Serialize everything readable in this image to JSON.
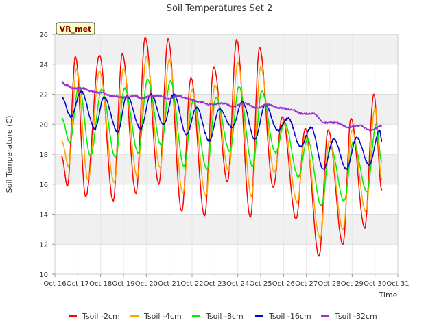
{
  "chart_data": {
    "type": "line",
    "title": "Soil Temperatures Set 2",
    "xlabel": "Time",
    "ylabel": "Soil Temperature (C)",
    "site_label": "VR_met",
    "xlim": [
      16,
      31
    ],
    "ylim": [
      10,
      26
    ],
    "x_ticks": [
      {
        "value": 16,
        "label": "Oct 16"
      },
      {
        "value": 17,
        "label": "Oct 17"
      },
      {
        "value": 18,
        "label": "Oct 18"
      },
      {
        "value": 19,
        "label": "Oct 19"
      },
      {
        "value": 20,
        "label": "Oct 20"
      },
      {
        "value": 21,
        "label": "Oct 21"
      },
      {
        "value": 22,
        "label": "Oct 22"
      },
      {
        "value": 23,
        "label": "Oct 23"
      },
      {
        "value": 24,
        "label": "Oct 24"
      },
      {
        "value": 25,
        "label": "Oct 25"
      },
      {
        "value": 26,
        "label": "Oct 26"
      },
      {
        "value": 27,
        "label": "Oct 27"
      },
      {
        "value": 28,
        "label": "Oct 28"
      },
      {
        "value": 29,
        "label": "Oct 29"
      },
      {
        "value": 30,
        "label": "Oct 30"
      },
      {
        "value": 31,
        "label": "Oct 31"
      }
    ],
    "y_ticks": [
      10,
      12,
      14,
      16,
      18,
      20,
      22,
      24,
      26
    ],
    "grid": true,
    "legend_position": "bottom",
    "series": [
      {
        "name": "Tsoil -2cm",
        "color": "#ff0000",
        "points": [
          [
            16.3,
            17.8
          ],
          [
            16.55,
            15.9
          ],
          [
            16.9,
            24.5
          ],
          [
            17.35,
            15.2
          ],
          [
            17.95,
            24.6
          ],
          [
            18.55,
            14.9
          ],
          [
            18.95,
            24.7
          ],
          [
            19.55,
            15.4
          ],
          [
            19.95,
            25.8
          ],
          [
            20.55,
            16.0
          ],
          [
            20.95,
            25.7
          ],
          [
            21.55,
            14.2
          ],
          [
            21.95,
            23.1
          ],
          [
            22.55,
            13.9
          ],
          [
            22.95,
            23.8
          ],
          [
            23.55,
            16.2
          ],
          [
            23.95,
            25.6
          ],
          [
            24.55,
            13.8
          ],
          [
            24.95,
            25.1
          ],
          [
            25.55,
            15.8
          ],
          [
            25.95,
            20.5
          ],
          [
            26.55,
            13.7
          ],
          [
            26.95,
            19.7
          ],
          [
            27.55,
            11.2
          ],
          [
            27.95,
            19.6
          ],
          [
            28.6,
            12.0
          ],
          [
            28.95,
            20.4
          ],
          [
            29.55,
            13.1
          ],
          [
            29.95,
            22.0
          ],
          [
            30.3,
            15.6
          ]
        ]
      },
      {
        "name": "Tsoil -4cm",
        "color": "#ffa500",
        "points": [
          [
            16.3,
            18.9
          ],
          [
            16.6,
            17.2
          ],
          [
            16.95,
            23.7
          ],
          [
            17.45,
            16.3
          ],
          [
            17.95,
            23.5
          ],
          [
            18.6,
            16.1
          ],
          [
            19.0,
            23.7
          ],
          [
            19.6,
            16.5
          ],
          [
            20.0,
            24.5
          ],
          [
            20.6,
            17.1
          ],
          [
            21.0,
            24.3
          ],
          [
            21.6,
            15.4
          ],
          [
            22.0,
            22.3
          ],
          [
            22.6,
            15.2
          ],
          [
            23.0,
            22.6
          ],
          [
            23.6,
            16.9
          ],
          [
            24.0,
            24.1
          ],
          [
            24.6,
            15.2
          ],
          [
            25.0,
            23.8
          ],
          [
            25.6,
            16.8
          ],
          [
            26.0,
            20.2
          ],
          [
            26.6,
            14.8
          ],
          [
            26.95,
            19.2
          ],
          [
            27.6,
            12.4
          ],
          [
            28.0,
            18.9
          ],
          [
            28.6,
            13.0
          ],
          [
            29.0,
            19.6
          ],
          [
            29.6,
            14.2
          ],
          [
            30.0,
            21.1
          ],
          [
            30.3,
            16.3
          ]
        ]
      },
      {
        "name": "Tsoil -8cm",
        "color": "#00ee00",
        "points": [
          [
            16.3,
            20.4
          ],
          [
            16.65,
            18.8
          ],
          [
            17.05,
            22.6
          ],
          [
            17.55,
            17.9
          ],
          [
            18.05,
            22.3
          ],
          [
            18.65,
            17.8
          ],
          [
            19.05,
            22.4
          ],
          [
            19.65,
            18.1
          ],
          [
            20.05,
            23.0
          ],
          [
            20.65,
            18.6
          ],
          [
            21.05,
            22.9
          ],
          [
            21.65,
            17.2
          ],
          [
            22.05,
            21.6
          ],
          [
            22.65,
            17.0
          ],
          [
            23.05,
            21.8
          ],
          [
            23.65,
            18.2
          ],
          [
            24.05,
            22.5
          ],
          [
            24.65,
            17.2
          ],
          [
            25.05,
            22.2
          ],
          [
            25.65,
            18.1
          ],
          [
            26.05,
            20.1
          ],
          [
            26.65,
            16.5
          ],
          [
            27.05,
            19.0
          ],
          [
            27.65,
            14.6
          ],
          [
            28.05,
            18.5
          ],
          [
            28.65,
            14.9
          ],
          [
            29.05,
            18.8
          ],
          [
            29.65,
            15.5
          ],
          [
            30.05,
            20.0
          ],
          [
            30.3,
            17.5
          ]
        ]
      },
      {
        "name": "Tsoil -16cm",
        "color": "#0000cc",
        "points": [
          [
            16.3,
            21.8
          ],
          [
            16.7,
            20.5
          ],
          [
            17.15,
            22.2
          ],
          [
            17.75,
            19.7
          ],
          [
            18.15,
            21.8
          ],
          [
            18.75,
            19.5
          ],
          [
            19.15,
            21.9
          ],
          [
            19.75,
            19.7
          ],
          [
            20.2,
            22.0
          ],
          [
            20.75,
            20.0
          ],
          [
            21.2,
            22.0
          ],
          [
            21.75,
            19.3
          ],
          [
            22.2,
            21.1
          ],
          [
            22.75,
            18.9
          ],
          [
            23.2,
            21.0
          ],
          [
            23.75,
            19.8
          ],
          [
            24.2,
            21.5
          ],
          [
            24.75,
            19.0
          ],
          [
            25.2,
            21.3
          ],
          [
            25.75,
            19.6
          ],
          [
            26.2,
            20.4
          ],
          [
            26.75,
            18.5
          ],
          [
            27.2,
            19.8
          ],
          [
            27.75,
            17.0
          ],
          [
            28.2,
            19.0
          ],
          [
            28.75,
            17.0
          ],
          [
            29.2,
            19.1
          ],
          [
            29.75,
            17.3
          ],
          [
            30.2,
            19.6
          ],
          [
            30.3,
            18.9
          ]
        ]
      },
      {
        "name": "Tsoil -32cm",
        "color": "#9933cc",
        "points": [
          [
            16.3,
            22.8
          ],
          [
            16.5,
            22.6
          ],
          [
            16.8,
            22.4
          ],
          [
            17.2,
            22.4
          ],
          [
            17.6,
            22.2
          ],
          [
            18.0,
            22.1
          ],
          [
            18.5,
            21.9
          ],
          [
            19.0,
            21.8
          ],
          [
            19.5,
            21.9
          ],
          [
            19.8,
            21.7
          ],
          [
            20.2,
            21.9
          ],
          [
            20.6,
            21.9
          ],
          [
            21.0,
            21.7
          ],
          [
            21.4,
            21.9
          ],
          [
            21.8,
            21.7
          ],
          [
            22.3,
            21.5
          ],
          [
            22.8,
            21.3
          ],
          [
            23.3,
            21.4
          ],
          [
            23.8,
            21.2
          ],
          [
            24.3,
            21.4
          ],
          [
            24.8,
            21.1
          ],
          [
            25.3,
            21.3
          ],
          [
            25.8,
            21.1
          ],
          [
            26.3,
            21.0
          ],
          [
            26.8,
            20.7
          ],
          [
            27.3,
            20.7
          ],
          [
            27.8,
            20.1
          ],
          [
            28.3,
            20.1
          ],
          [
            28.8,
            19.8
          ],
          [
            29.3,
            19.9
          ],
          [
            29.8,
            19.6
          ],
          [
            30.3,
            19.9
          ]
        ]
      }
    ]
  }
}
